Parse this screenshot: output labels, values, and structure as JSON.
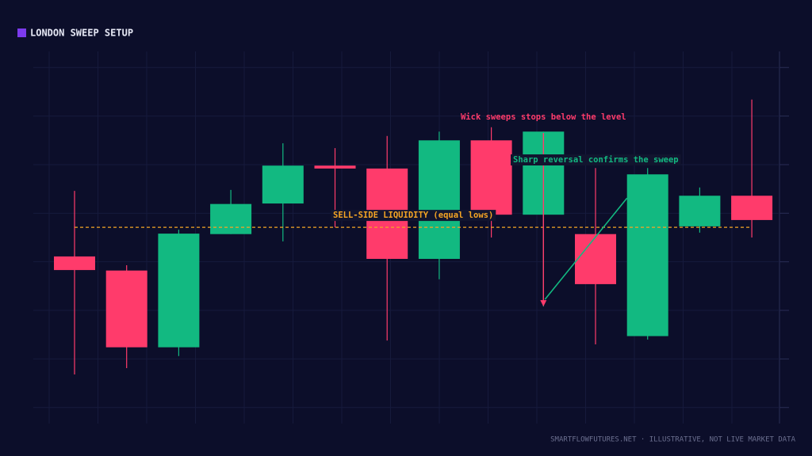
{
  "chart_data": {
    "type": "candlestick",
    "title": "LONDON SWEEP SETUP",
    "footer": "SMARTFLOWFUTURES.NET · ILLUSTRATIVE, NOT LIVE MARKET DATA",
    "up_color": "#12b981",
    "down_color": "#ff3b6b",
    "title_marker_color": "#7c3aed",
    "grid": true,
    "ylim": [
      6.7,
      83.3
    ],
    "yticks": [
      10,
      20,
      30,
      40,
      50,
      60,
      70,
      80
    ],
    "candles": [
      {
        "open": 41.1,
        "high": 54.6,
        "low": 16.8,
        "close": 38.3
      },
      {
        "open": 38.2,
        "high": 39.3,
        "low": 18.1,
        "close": 22.4
      },
      {
        "open": 22.4,
        "high": 46.6,
        "low": 20.6,
        "close": 45.8
      },
      {
        "open": 45.7,
        "high": 54.8,
        "low": 45.7,
        "close": 51.9
      },
      {
        "open": 52.0,
        "high": 64.4,
        "low": 44.2,
        "close": 59.8
      },
      {
        "open": 59.8,
        "high": 63.4,
        "low": 47.1,
        "close": 59.2
      },
      {
        "open": 59.2,
        "high": 65.9,
        "low": 23.8,
        "close": 40.6
      },
      {
        "open": 40.6,
        "high": 66.8,
        "low": 36.4,
        "close": 65.0
      },
      {
        "open": 65.0,
        "high": 67.7,
        "low": 45.0,
        "close": 49.7
      },
      {
        "open": 49.7,
        "high": 66.8,
        "low": 30.8,
        "close": 66.8
      },
      {
        "open": 45.7,
        "high": 59.3,
        "low": 23.0,
        "close": 35.4
      },
      {
        "open": 24.7,
        "high": 59.3,
        "low": 24.0,
        "close": 58.0
      },
      {
        "open": 47.3,
        "high": 55.3,
        "low": 46.0,
        "close": 53.6
      },
      {
        "open": 53.6,
        "high": 73.4,
        "low": 45.0,
        "close": 48.6
      }
    ],
    "level": {
      "label": "SELL-SIDE LIQUIDITY (equal lows)",
      "value": 47.1,
      "color": "#f5a524"
    },
    "annotations": [
      {
        "text": "Wick sweeps stops below the level",
        "color": "#ff3b6b"
      },
      {
        "text": "Sharp reversal confirms the sweep",
        "color": "#12b981"
      }
    ]
  }
}
